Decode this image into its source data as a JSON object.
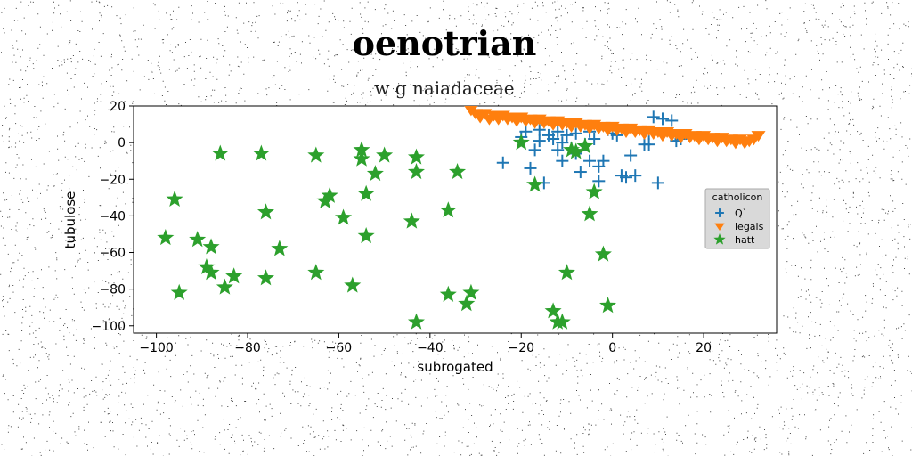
{
  "chart_data": {
    "type": "scatter",
    "title": "oenotrian",
    "subtitle": "w g naiadaceae",
    "xlabel": "subrogated",
    "ylabel": "tubulose",
    "xlim": [
      -105,
      36
    ],
    "ylim": [
      -104,
      20
    ],
    "xticks": [
      -100,
      -80,
      -60,
      -40,
      -20,
      0,
      20
    ],
    "yticks": [
      20,
      0,
      -20,
      -40,
      -60,
      -80,
      -100
    ],
    "grid": false,
    "legend": {
      "title": "catholicon",
      "placement": "right"
    },
    "series": [
      {
        "name": "Q`",
        "marker": "plus",
        "color": "#1f77b4",
        "points": [
          [
            -24,
            -11
          ],
          [
            -19,
            6
          ],
          [
            -18,
            -14
          ],
          [
            -17,
            -4
          ],
          [
            -16,
            7
          ],
          [
            -16,
            1
          ],
          [
            -15,
            -22
          ],
          [
            -14,
            4
          ],
          [
            -13,
            2
          ],
          [
            -12,
            6
          ],
          [
            -12,
            -4
          ],
          [
            -11,
            0
          ],
          [
            -11,
            -10
          ],
          [
            -10,
            4
          ],
          [
            -9,
            -3
          ],
          [
            -8,
            5
          ],
          [
            -8,
            -6
          ],
          [
            -7,
            -16
          ],
          [
            -6,
            -1
          ],
          [
            -5,
            6
          ],
          [
            -5,
            -10
          ],
          [
            -4,
            2
          ],
          [
            -3,
            -21
          ],
          [
            -2,
            -10
          ],
          [
            -1,
            7
          ],
          [
            0,
            5
          ],
          [
            1,
            4
          ],
          [
            2,
            -18
          ],
          [
            3,
            -19
          ],
          [
            4,
            -7
          ],
          [
            5,
            -18
          ],
          [
            7,
            -1
          ],
          [
            8,
            -1
          ],
          [
            9,
            14
          ],
          [
            10,
            -22
          ],
          [
            11,
            13
          ],
          [
            13,
            12
          ],
          [
            14,
            1
          ],
          [
            15,
            2
          ],
          [
            8,
            5
          ],
          [
            -3,
            -13
          ],
          [
            -20,
            3
          ]
        ]
      },
      {
        "name": "legals",
        "marker": "triangle-down",
        "color": "#ff7f0e",
        "points": [
          [
            -31,
            18
          ],
          [
            -30,
            16
          ],
          [
            -29,
            14
          ],
          [
            -28,
            16
          ],
          [
            -27,
            13
          ],
          [
            -26,
            15
          ],
          [
            -25,
            13
          ],
          [
            -24,
            15
          ],
          [
            -23,
            13
          ],
          [
            -22,
            14
          ],
          [
            -21,
            12
          ],
          [
            -20,
            14
          ],
          [
            -19,
            12
          ],
          [
            -18,
            13
          ],
          [
            -17,
            11
          ],
          [
            -16,
            13
          ],
          [
            -15,
            11
          ],
          [
            -14,
            12
          ],
          [
            -13,
            10
          ],
          [
            -12,
            12
          ],
          [
            -11,
            10
          ],
          [
            -10,
            11
          ],
          [
            -9,
            9
          ],
          [
            -8,
            11
          ],
          [
            -7,
            9
          ],
          [
            -6,
            10
          ],
          [
            -5,
            8
          ],
          [
            -4,
            10
          ],
          [
            -3,
            8
          ],
          [
            -2,
            9
          ],
          [
            -1,
            7
          ],
          [
            0,
            9
          ],
          [
            1,
            7
          ],
          [
            2,
            8
          ],
          [
            3,
            6
          ],
          [
            4,
            8
          ],
          [
            5,
            6
          ],
          [
            6,
            7
          ],
          [
            7,
            5
          ],
          [
            8,
            7
          ],
          [
            9,
            5
          ],
          [
            10,
            6
          ],
          [
            11,
            4
          ],
          [
            12,
            6
          ],
          [
            13,
            4
          ],
          [
            14,
            5
          ],
          [
            15,
            3
          ],
          [
            16,
            5
          ],
          [
            17,
            3
          ],
          [
            18,
            4
          ],
          [
            19,
            2
          ],
          [
            20,
            4
          ],
          [
            21,
            2
          ],
          [
            22,
            3
          ],
          [
            23,
            1
          ],
          [
            24,
            3
          ],
          [
            25,
            1
          ],
          [
            26,
            2
          ],
          [
            27,
            0
          ],
          [
            28,
            2
          ],
          [
            29,
            0
          ],
          [
            30,
            1
          ],
          [
            31,
            2
          ],
          [
            32,
            4
          ]
        ]
      },
      {
        "name": "hatt",
        "marker": "star",
        "color": "#2ca02c",
        "points": [
          [
            -98,
            -52
          ],
          [
            -96,
            -31
          ],
          [
            -95,
            -82
          ],
          [
            -91,
            -53
          ],
          [
            -89,
            -68
          ],
          [
            -88,
            -57
          ],
          [
            -88,
            -71
          ],
          [
            -86,
            -6
          ],
          [
            -85,
            -79
          ],
          [
            -83,
            -73
          ],
          [
            -77,
            -6
          ],
          [
            -76,
            -38
          ],
          [
            -76,
            -74
          ],
          [
            -73,
            -58
          ],
          [
            -65,
            -7
          ],
          [
            -65,
            -71
          ],
          [
            -63,
            -32
          ],
          [
            -62,
            -29
          ],
          [
            -59,
            -41
          ],
          [
            -57,
            -78
          ],
          [
            -55,
            -4
          ],
          [
            -55,
            -9
          ],
          [
            -54,
            -28
          ],
          [
            -54,
            -51
          ],
          [
            -52,
            -17
          ],
          [
            -50,
            -7
          ],
          [
            -44,
            -43
          ],
          [
            -43,
            -8
          ],
          [
            -43,
            -16
          ],
          [
            -43,
            -98
          ],
          [
            -36,
            -37
          ],
          [
            -36,
            -83
          ],
          [
            -34,
            -16
          ],
          [
            -32,
            -88
          ],
          [
            -31,
            -82
          ],
          [
            -20,
            0
          ],
          [
            -17,
            -23
          ],
          [
            -13,
            -92
          ],
          [
            -12,
            -98
          ],
          [
            -11,
            -98
          ],
          [
            -10,
            -71
          ],
          [
            -9,
            -4
          ],
          [
            -8,
            -5
          ],
          [
            -6,
            -2
          ],
          [
            -5,
            -39
          ],
          [
            -4,
            -27
          ],
          [
            -2,
            -61
          ],
          [
            -1,
            -89
          ]
        ]
      }
    ]
  }
}
